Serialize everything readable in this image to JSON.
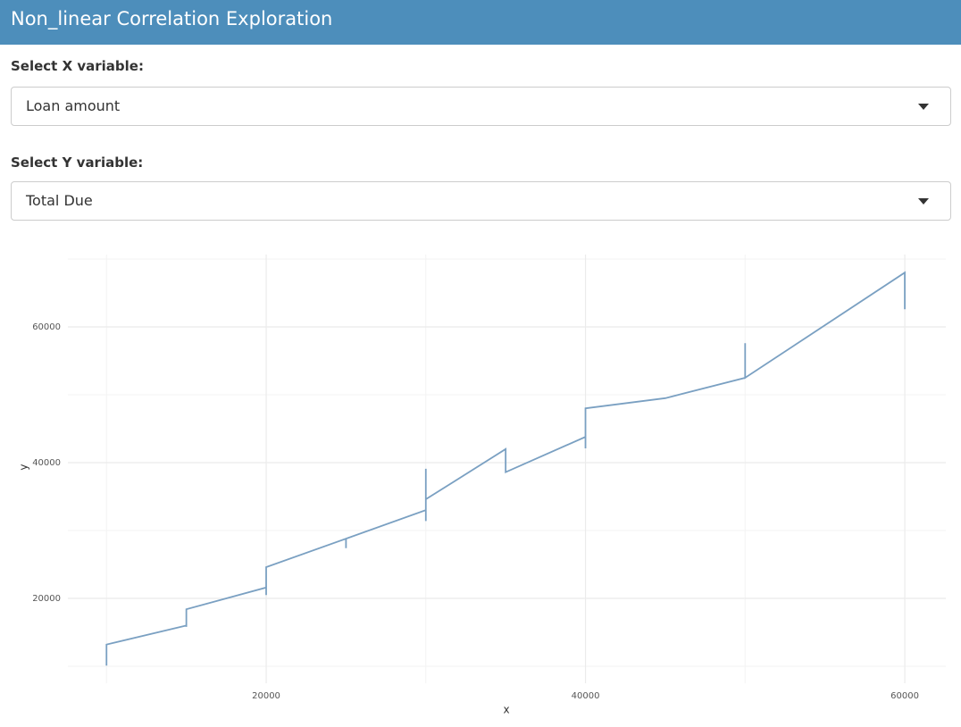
{
  "header": {
    "title": "Non_linear Correlation Exploration"
  },
  "inputs": [
    {
      "label": "Select X variable:",
      "value": "Loan amount"
    },
    {
      "label": "Select Y variable:",
      "value": "Total Due"
    }
  ],
  "chart_data": {
    "type": "line",
    "x_label": "x",
    "y_label": "y",
    "x": [
      10000,
      10000,
      15000,
      15000,
      15000,
      20000,
      20000,
      20000,
      25000,
      25000,
      25000,
      30000,
      30000,
      30000,
      30000,
      35000,
      35000,
      40000,
      40000,
      40000,
      45000,
      50000,
      50000,
      50000,
      60000,
      60000
    ],
    "values": [
      10100,
      13200,
      16000,
      15800,
      18400,
      21600,
      20500,
      24600,
      28800,
      27400,
      28800,
      33000,
      31400,
      39100,
      34600,
      42000,
      38600,
      43800,
      42100,
      48000,
      49500,
      52500,
      57600,
      52500,
      68000,
      62600
    ],
    "color": "#7aa0c2",
    "xlim": [
      7580,
      62570
    ],
    "ylim": [
      7500,
      70660
    ],
    "xticks": [
      20000,
      40000,
      60000
    ],
    "yticks": [
      20000,
      40000,
      60000
    ],
    "x_minor_ticks": [
      10000,
      30000,
      50000
    ],
    "y_minor_ticks": [
      10000,
      30000,
      50000,
      70000
    ],
    "grid": true
  }
}
